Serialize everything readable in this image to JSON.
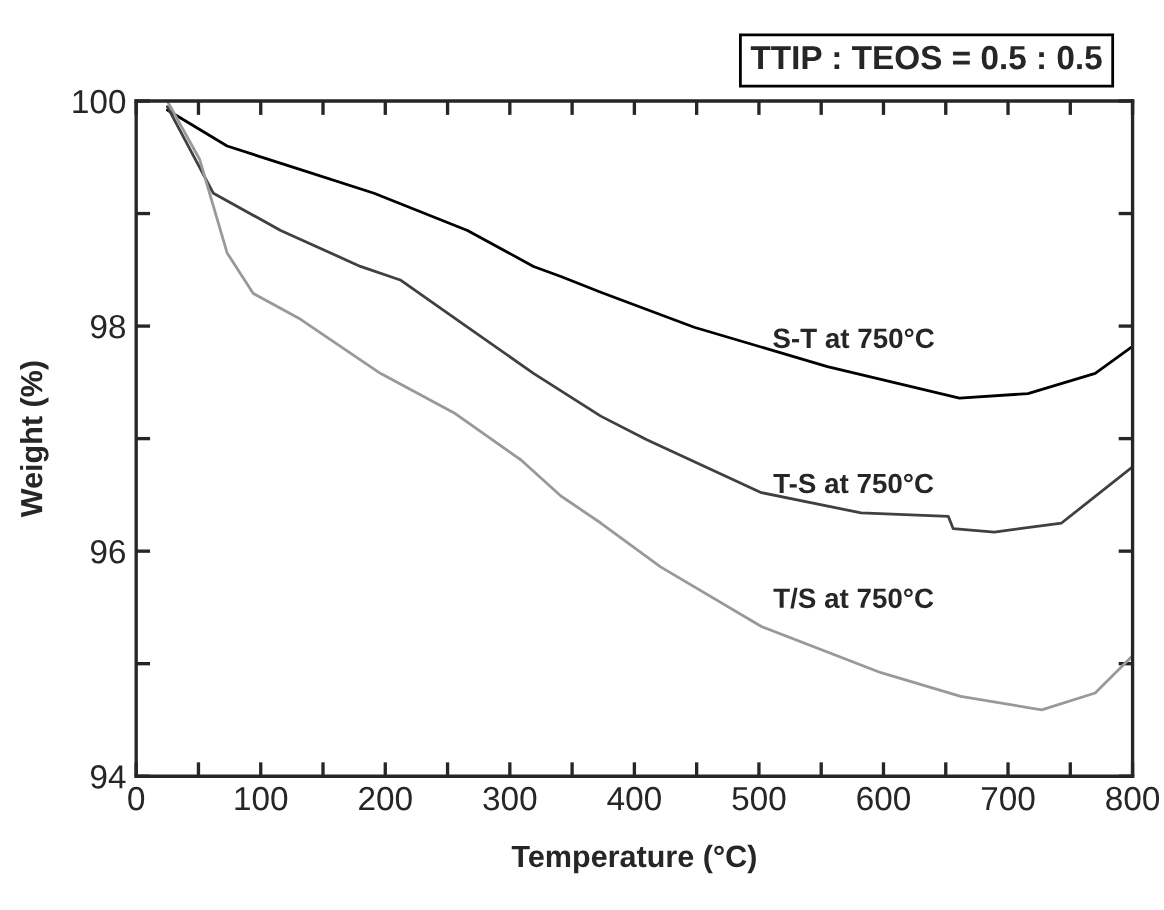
{
  "chart_data": {
    "type": "line",
    "xlabel": "Temperature (°C)",
    "ylabel": "Weight (%)",
    "xlim": [
      0,
      800
    ],
    "ylim": [
      94,
      100
    ],
    "xticks": [
      0,
      {
        "value": 50,
        "label": null
      },
      100,
      {
        "value": 150,
        "label": null
      },
      200,
      {
        "value": 250,
        "label": null
      },
      300,
      {
        "value": 350,
        "label": null
      },
      400,
      {
        "value": 450,
        "label": null
      },
      500,
      {
        "value": 550,
        "label": null
      },
      600,
      {
        "value": 650,
        "label": null
      },
      700,
      {
        "value": 750,
        "label": null
      },
      800
    ],
    "yticks": [
      94,
      {
        "value": 95,
        "label": null
      },
      96,
      {
        "value": 97,
        "label": null
      },
      98,
      {
        "value": 99,
        "label": null
      },
      100
    ],
    "grid": false,
    "marker": "none",
    "line_style": "solid",
    "series": [
      {
        "color": "#000000",
        "x": [
          25,
          73,
          132,
          191,
          266,
          319,
          341,
          373,
          448,
          555,
          661,
          716,
          770,
          800
        ],
        "values": [
          99.92,
          99.6,
          99.39,
          99.18,
          98.85,
          98.53,
          98.44,
          98.3,
          97.99,
          97.64,
          97.36,
          97.4,
          97.58,
          97.82
        ]
      },
      {
        "color": "#404040",
        "x": [
          25,
          62,
          116,
          180,
          212,
          266,
          319,
          373,
          410,
          502,
          582,
          652,
          656,
          689,
          743,
          800
        ],
        "values": [
          99.95,
          99.18,
          98.85,
          98.53,
          98.41,
          97.99,
          97.58,
          97.2,
          96.99,
          96.52,
          96.34,
          96.31,
          96.2,
          96.17,
          96.25,
          96.75
        ]
      },
      {
        "color": "#999999",
        "x": [
          25,
          51,
          73,
          94,
          132,
          196,
          255,
          309,
          341,
          373,
          421,
          502,
          598,
          662,
          727,
          770,
          800
        ],
        "values": [
          100.0,
          99.48,
          98.65,
          98.29,
          98.06,
          97.58,
          97.23,
          96.81,
          96.49,
          96.25,
          95.86,
          95.33,
          94.92,
          94.71,
          94.59,
          94.74,
          95.07
        ]
      }
    ],
    "annotations": [
      "TTIP : TEOS = 0.5 : 0.5",
      "S-T at 750°C",
      "T-S at 750°C",
      "T/S at 750°C"
    ]
  }
}
